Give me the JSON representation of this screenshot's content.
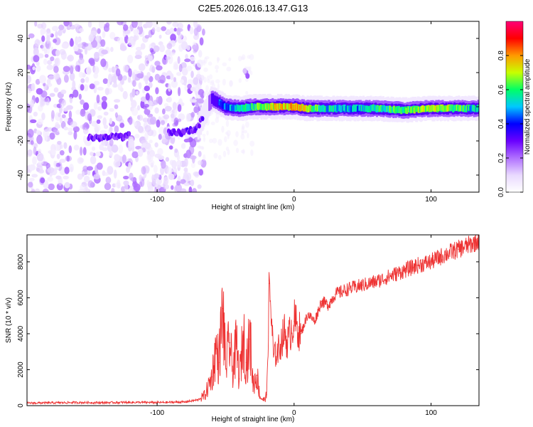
{
  "figure": {
    "title": "C2E5.2026.016.13.47.G13"
  },
  "colors": {
    "frame": "#000000",
    "snr_line": "#ee3333",
    "background": "#ffffff"
  },
  "chart_data": [
    {
      "type": "heatmap",
      "name": "spectrogram",
      "title": "",
      "xlabel": "Height of straight line (km)",
      "ylabel": "Frequency (Hz)",
      "xlim": [
        -195,
        135
      ],
      "ylim": [
        -50,
        50
      ],
      "xticks": [
        -100,
        0,
        100
      ],
      "xtick_labels": [
        "-100",
        "0",
        "100"
      ],
      "yticks": [
        -40,
        -20,
        0,
        20,
        40
      ],
      "ytick_labels": [
        "-40",
        "-20",
        "0",
        "20",
        "40"
      ],
      "colormap": [
        "#ffffff",
        "#e9d9ff",
        "#b070ff",
        "#6a00ff",
        "#0000ff",
        "#00c8ff",
        "#00ff66",
        "#c8ff00",
        "#ff9900",
        "#ff0000",
        "#ff0077"
      ],
      "colorbar": {
        "label": "Normalized spectral amplitude",
        "range": [
          0,
          1
        ],
        "ticks": [
          0.0,
          0.2,
          0.4,
          0.6,
          0.8
        ],
        "tick_labels": [
          "0.0",
          "0.2",
          "0.4",
          "0.6",
          "0.8"
        ]
      },
      "ridge": {
        "description_points_x": [
          -135,
          -80,
          -70,
          -60,
          -50,
          -40,
          -30,
          -20,
          -10,
          0,
          10,
          20,
          40,
          60,
          80,
          100,
          120,
          135
        ],
        "frequency": [
          -18,
          -15,
          -12,
          5,
          0,
          -1,
          0,
          0,
          0,
          0,
          -1,
          -1,
          -1,
          -1,
          -2,
          -1,
          -1,
          -1
        ],
        "amplitude": [
          0.3,
          0.25,
          0.3,
          0.35,
          0.45,
          0.5,
          0.55,
          0.7,
          0.75,
          0.75,
          0.7,
          0.55,
          0.5,
          0.55,
          0.6,
          0.7,
          0.6,
          0.5
        ]
      }
    },
    {
      "type": "line",
      "name": "snr",
      "title": "",
      "xlabel": "Height of straight line (km)",
      "ylabel": "SNR (10 * v/v)",
      "xlim": [
        -195,
        135
      ],
      "ylim": [
        0,
        9500
      ],
      "xticks": [
        -100,
        0,
        100
      ],
      "xtick_labels": [
        "-100",
        "0",
        "100"
      ],
      "yticks": [
        0,
        2000,
        4000,
        6000,
        8000
      ],
      "ytick_labels": [
        "0",
        "2000",
        "4000",
        "6000",
        "8000"
      ],
      "series": [
        {
          "x": [
            -195,
            -180,
            -160,
            -140,
            -120,
            -100,
            -80,
            -70,
            -65,
            -60,
            -57,
            -55,
            -52,
            -50,
            -47,
            -45,
            -42,
            -40,
            -37,
            -35,
            -32,
            -30,
            -27,
            -25,
            -22,
            -20,
            -18,
            -15,
            -12,
            -10,
            -7,
            -5,
            -2,
            0,
            5,
            10,
            15,
            20,
            25,
            30,
            40,
            50,
            60,
            70,
            80,
            90,
            100,
            110,
            120,
            130,
            135
          ],
          "values": [
            120,
            130,
            150,
            140,
            160,
            150,
            180,
            300,
            600,
            1600,
            3200,
            2400,
            5400,
            2200,
            3500,
            2000,
            3300,
            1500,
            3900,
            2400,
            3700,
            1200,
            1700,
            500,
            300,
            600,
            6800,
            2700,
            3000,
            3400,
            4100,
            3500,
            4300,
            4700,
            4000,
            5100,
            4700,
            5800,
            5600,
            6200,
            6500,
            6700,
            6900,
            7200,
            7500,
            7800,
            8000,
            8400,
            8700,
            9000,
            9200
          ]
        }
      ]
    }
  ]
}
